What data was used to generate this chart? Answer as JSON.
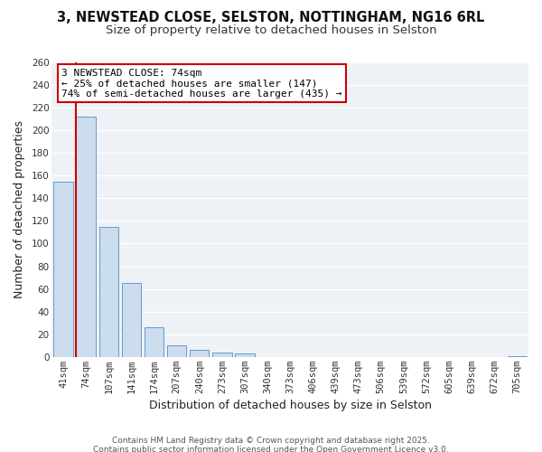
{
  "title": "3, NEWSTEAD CLOSE, SELSTON, NOTTINGHAM, NG16 6RL",
  "subtitle": "Size of property relative to detached houses in Selston",
  "xlabel": "Distribution of detached houses by size in Selston",
  "ylabel": "Number of detached properties",
  "bar_labels": [
    "41sqm",
    "74sqm",
    "107sqm",
    "141sqm",
    "174sqm",
    "207sqm",
    "240sqm",
    "273sqm",
    "307sqm",
    "340sqm",
    "373sqm",
    "406sqm",
    "439sqm",
    "473sqm",
    "506sqm",
    "539sqm",
    "572sqm",
    "605sqm",
    "639sqm",
    "672sqm",
    "705sqm"
  ],
  "bar_values": [
    155,
    212,
    115,
    65,
    26,
    10,
    6,
    4,
    3,
    0,
    0,
    0,
    0,
    0,
    0,
    0,
    0,
    0,
    0,
    0,
    1
  ],
  "bar_color": "#ccdded",
  "bar_edge_color": "#6699cc",
  "highlight_bar_index": 1,
  "highlight_line_color": "#cc0000",
  "annotation_line1": "3 NEWSTEAD CLOSE: 74sqm",
  "annotation_line2": "← 25% of detached houses are smaller (147)",
  "annotation_line3": "74% of semi-detached houses are larger (435) →",
  "annotation_box_color": "#ffffff",
  "annotation_box_edge": "#cc0000",
  "ylim": [
    0,
    260
  ],
  "yticks": [
    0,
    20,
    40,
    60,
    80,
    100,
    120,
    140,
    160,
    180,
    200,
    220,
    240,
    260
  ],
  "footer_line1": "Contains HM Land Registry data © Crown copyright and database right 2025.",
  "footer_line2": "Contains public sector information licensed under the Open Government Licence v3.0.",
  "bg_color": "#ffffff",
  "plot_bg_color": "#eef2f7",
  "grid_color": "#ffffff",
  "title_fontsize": 10.5,
  "subtitle_fontsize": 9.5,
  "axis_label_fontsize": 9,
  "tick_fontsize": 7.5,
  "annotation_fontsize": 8,
  "footer_fontsize": 6.5
}
